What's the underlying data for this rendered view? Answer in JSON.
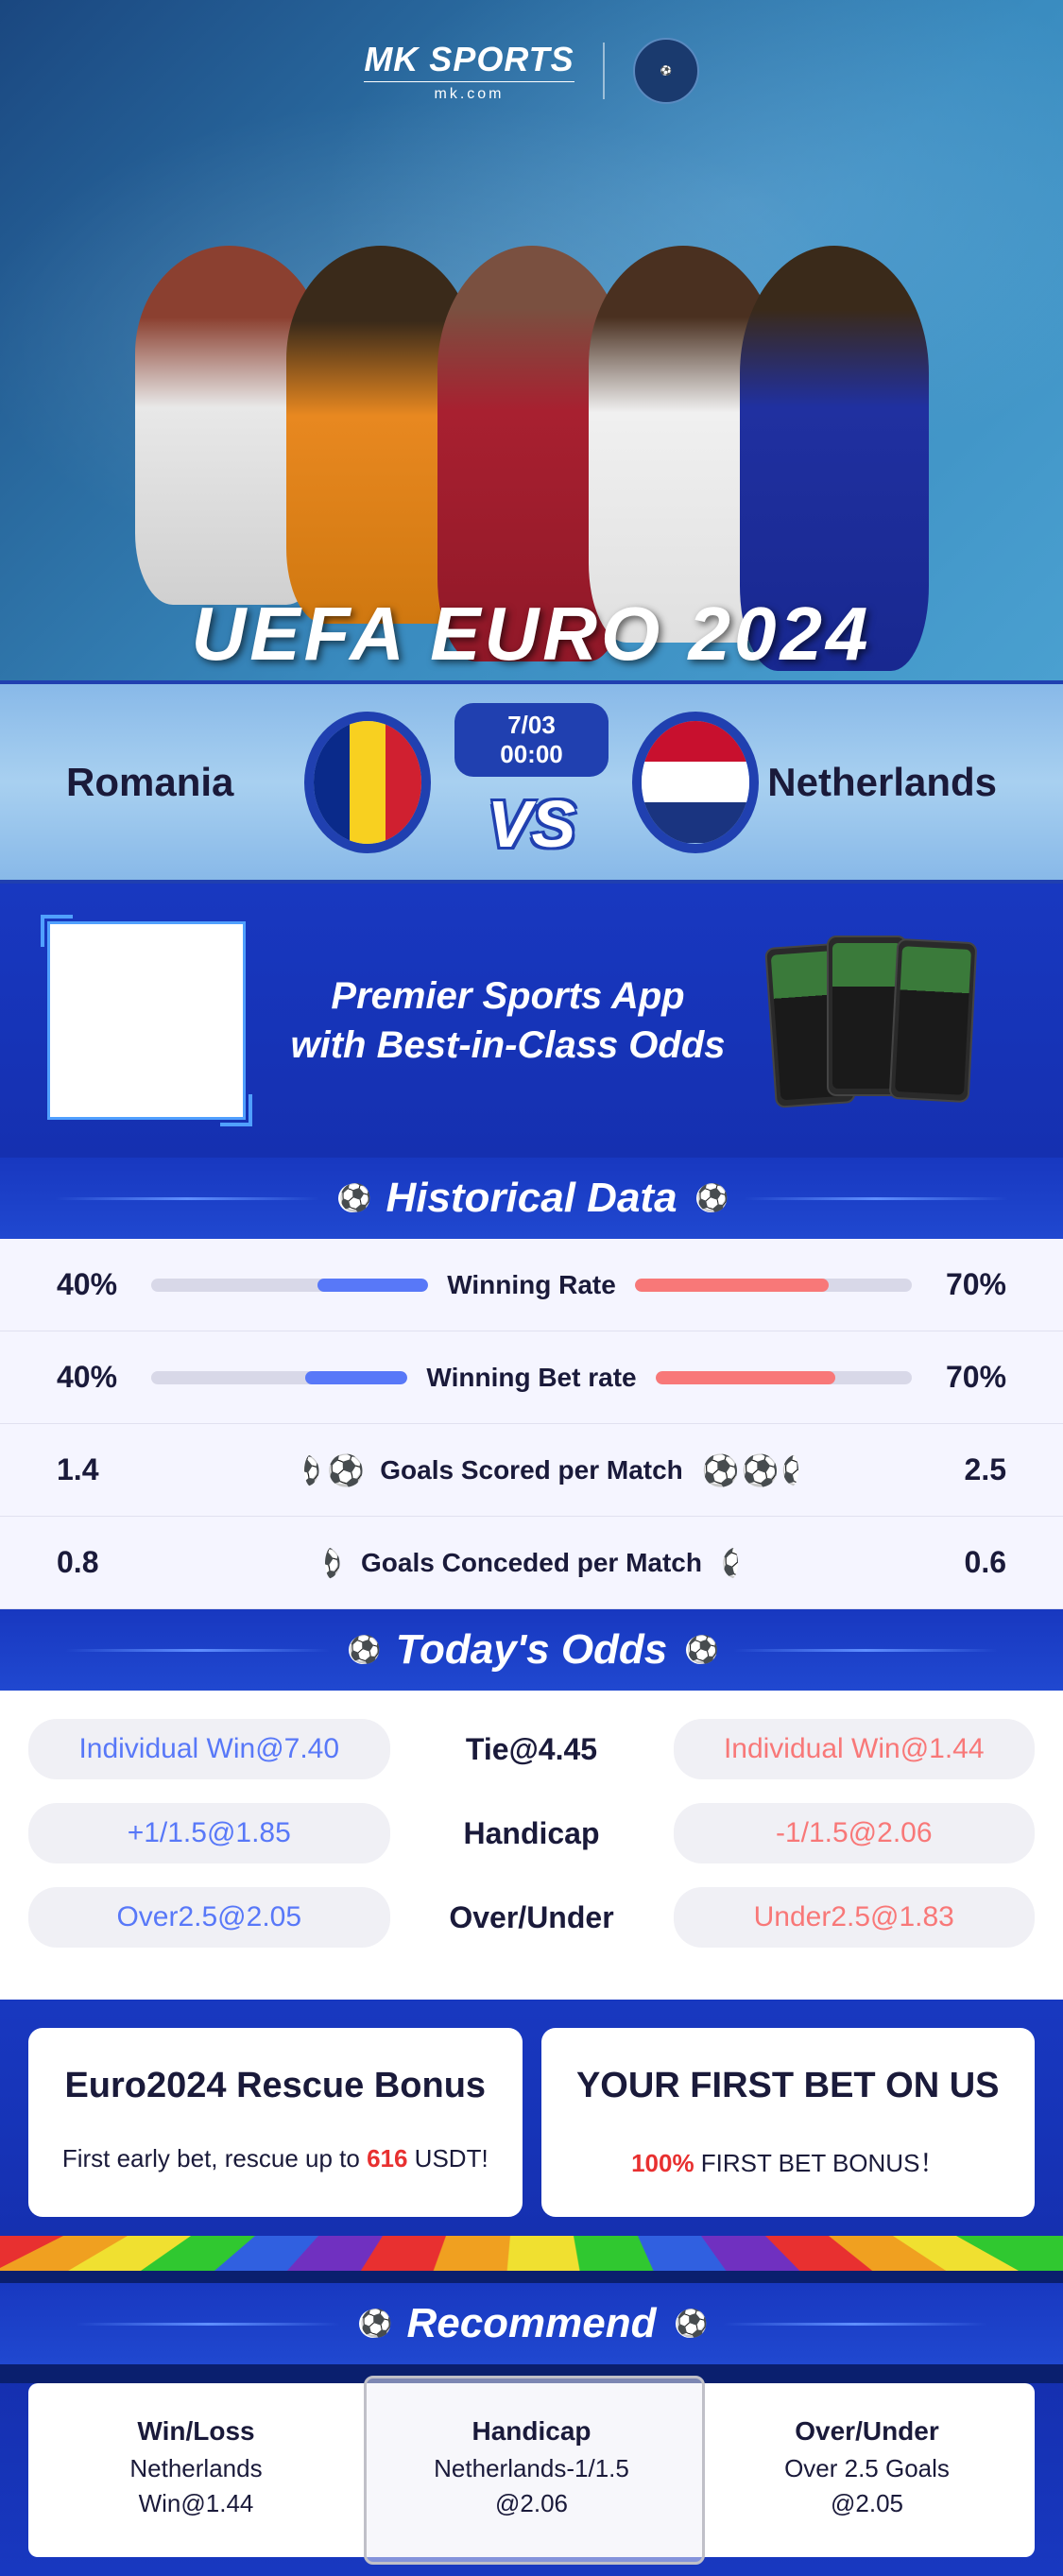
{
  "brand": {
    "name": "MK SPORTS",
    "site": "mk.com"
  },
  "hero_title": "UEFA EURO 2024",
  "match": {
    "team_left": "Romania",
    "team_right": "Netherlands",
    "date": "7/03 00:00",
    "vs": "VS",
    "flag_left": {
      "type": "vertical",
      "colors": [
        "#0a2a8a",
        "#f8d020",
        "#d02030"
      ]
    },
    "flag_right": {
      "type": "horizontal",
      "colors": [
        "#c8102e",
        "#ffffff",
        "#1a3480"
      ]
    }
  },
  "promo": {
    "line1": "Premier Sports App",
    "line2": "with Best-in-Class Odds"
  },
  "sections": {
    "historical": "Historical Data",
    "odds": "Today's Odds",
    "recommend": "Recommend"
  },
  "historical": {
    "rows": [
      {
        "type": "bar",
        "label": "Winning Rate",
        "left_value": "40%",
        "left_pct": 40,
        "right_value": "70%",
        "right_pct": 70
      },
      {
        "type": "bar",
        "label": "Winning Bet rate",
        "left_value": "40%",
        "left_pct": 40,
        "right_value": "70%",
        "right_pct": 70
      },
      {
        "type": "balls",
        "label": "Goals Scored per Match",
        "left_value": "1.4",
        "left_balls": 1.4,
        "right_value": "2.5",
        "right_balls": 2.5
      },
      {
        "type": "balls",
        "label": "Goals Conceded per Match",
        "left_value": "0.8",
        "left_balls": 0.8,
        "right_value": "0.6",
        "right_balls": 0.6
      }
    ],
    "colors": {
      "left_bar": "#5878f8",
      "right_bar": "#f87878",
      "left_ball": "#5878f8",
      "right_ball": "#f86868",
      "bar_bg": "#d8d8e8"
    }
  },
  "odds": {
    "rows": [
      {
        "left": "Individual Win@7.40",
        "center": "Tie@4.45",
        "right": "Individual Win@1.44"
      },
      {
        "left": "+1/1.5@1.85",
        "center": "Handicap",
        "right": "-1/1.5@2.06"
      },
      {
        "left": "Over2.5@2.05",
        "center": "Over/Under",
        "right": "Under2.5@1.83"
      }
    ],
    "colors": {
      "left": "#5878f8",
      "right": "#f87878",
      "pill_bg": "#f0f0f5"
    }
  },
  "bonuses": [
    {
      "title": "Euro2024 Rescue Bonus",
      "desc_pre": "First early bet, rescue up to ",
      "desc_highlight": "616",
      "desc_post": " USDT!"
    },
    {
      "title": "YOUR FIRST BET ON US",
      "desc_pre": "",
      "desc_highlight": "100%",
      "desc_post": " FIRST BET BONUS！"
    }
  ],
  "recommend": [
    {
      "title": "Win/Loss",
      "value": "Netherlands",
      "odds": "Win@1.44",
      "selected": false
    },
    {
      "title": "Handicap",
      "value": "Netherlands-1/1.5",
      "odds": "@2.06",
      "selected": true
    },
    {
      "title": "Over/Under",
      "value": "Over 2.5 Goals",
      "odds": "@2.05",
      "selected": false
    }
  ],
  "theme": {
    "primary_blue": "#1838c0",
    "accent_blue": "#5878f8",
    "accent_red": "#f87878",
    "text_dark": "#1a1a3a"
  }
}
